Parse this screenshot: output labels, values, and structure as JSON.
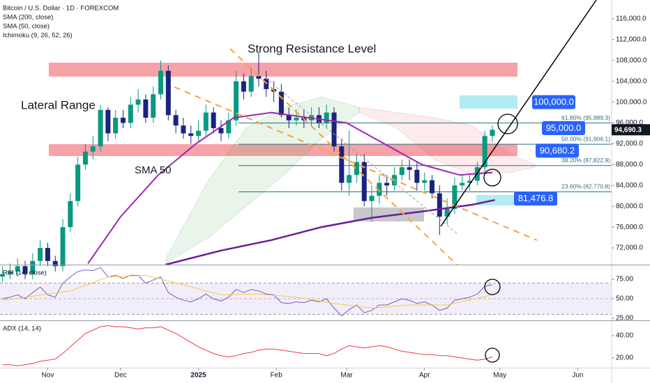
{
  "chart_data": [
    {
      "type": "candlestick",
      "title": "Bitcoin / U.S. Dollar · 1D · FOREXCOM",
      "indicators": [
        "SMA (200, close)",
        "SMA (50, close)",
        "Ichimoku (9, 26, 52, 26)"
      ],
      "x": [
        -17,
        -14,
        -11,
        -8,
        -5,
        -2,
        1,
        4,
        7,
        10,
        13,
        16,
        19,
        22,
        25,
        28,
        31,
        34,
        37,
        40,
        43,
        46,
        49,
        52,
        55,
        58,
        61,
        64,
        67,
        70,
        73,
        76,
        79,
        82,
        85,
        88,
        91,
        94,
        97,
        100,
        103,
        106,
        109,
        112,
        115,
        118,
        121,
        124,
        127,
        130,
        133,
        136,
        139,
        142,
        145,
        148,
        151,
        154,
        157,
        160,
        163,
        166,
        169,
        172,
        175,
        178
      ],
      "open": [
        66500,
        67000,
        67500,
        68500,
        67000,
        69500,
        72000,
        69500,
        68500,
        76000,
        81000,
        88000,
        90500,
        91500,
        98500,
        94000,
        97000,
        96000,
        99500,
        100500,
        97000,
        101500,
        106000,
        97500,
        95500,
        94000,
        93500,
        94500,
        98000,
        95000,
        94000,
        96500,
        104000,
        102000,
        105000,
        104500,
        102500,
        102000,
        97500,
        96500,
        97000,
        96500,
        97500,
        96000,
        98000,
        91500,
        84500,
        86000,
        88500,
        81000,
        82000,
        84500,
        84000,
        86000,
        87500,
        87000,
        84500,
        85000,
        82500,
        78000,
        79500,
        84000,
        84500,
        84900,
        87500,
        93500
      ],
      "high": [
        68500,
        69000,
        70000,
        69500,
        71000,
        73500,
        73000,
        70500,
        77500,
        82500,
        89500,
        92000,
        93500,
        99500,
        99000,
        98500,
        98500,
        101000,
        102500,
        101500,
        103000,
        108000,
        107000,
        98500,
        97000,
        95500,
        96500,
        99500,
        99000,
        96500,
        98000,
        106000,
        105500,
        106500,
        109500,
        106000,
        104000,
        103500,
        99000,
        98500,
        98500,
        99000,
        99000,
        99500,
        99000,
        93000,
        94500,
        90000,
        90000,
        84000,
        86000,
        86000,
        87500,
        89000,
        89000,
        88500,
        86500,
        86000,
        84000,
        81500,
        85500,
        86000,
        86000,
        88500,
        94500,
        95500
      ],
      "low": [
        65500,
        66000,
        66500,
        66000,
        66000,
        68500,
        68500,
        67500,
        67500,
        75000,
        80000,
        87000,
        89000,
        90500,
        92500,
        93000,
        95000,
        95000,
        98000,
        96000,
        96000,
        100500,
        96500,
        94000,
        93000,
        92000,
        92500,
        93500,
        94000,
        92500,
        93000,
        95500,
        100500,
        101000,
        103000,
        101000,
        100000,
        97000,
        95000,
        95500,
        95000,
        95500,
        95000,
        95000,
        90500,
        83000,
        82000,
        84500,
        80000,
        77000,
        80500,
        82000,
        83000,
        85000,
        85000,
        83000,
        83000,
        81500,
        74500,
        76500,
        78500,
        83000,
        83000,
        84000,
        86500,
        92500
      ],
      "close": [
        67000,
        67500,
        68500,
        67000,
        69500,
        72000,
        69500,
        68500,
        76000,
        81000,
        88000,
        90500,
        91500,
        98500,
        94000,
        97000,
        96000,
        99500,
        100500,
        97000,
        101500,
        106000,
        97500,
        95500,
        94000,
        93500,
        94500,
        98000,
        95000,
        94000,
        96500,
        104000,
        102000,
        105000,
        104500,
        102500,
        102000,
        97500,
        96500,
        97000,
        96500,
        97500,
        96000,
        98000,
        91500,
        84500,
        86000,
        88500,
        81000,
        82000,
        84500,
        84000,
        86000,
        87500,
        87000,
        84500,
        85000,
        82500,
        78000,
        79500,
        84000,
        84500,
        84900,
        87500,
        93500,
        94690.3
      ],
      "up_color": "#089981",
      "down_color": "#1a237e",
      "lines": [
        {
          "color": "#9c27b0",
          "x": [
            17,
            30,
            45,
            60,
            75,
            90,
            105,
            120,
            135,
            150,
            165,
            178
          ],
          "values": [
            69000,
            78000,
            86000,
            92000,
            97000,
            98000,
            97000,
            96000,
            92000,
            88000,
            86000,
            86500
          ]
        },
        {
          "color": "#6a1b9a",
          "x": [
            48,
            70,
            90,
            110,
            130,
            150,
            170,
            179
          ],
          "values": [
            68800,
            71500,
            73500,
            76000,
            77800,
            79000,
            80300,
            81200
          ]
        }
      ],
      "clouds": [
        {
          "color": "rgba(76,175,80,0.13)",
          "x": [
            48,
            65,
            80,
            95,
            110,
            125
          ],
          "upper": [
            70000,
            85000,
            95000,
            99000,
            101000,
            99000
          ],
          "lower": [
            69000,
            74000,
            80000,
            86000,
            93000,
            98000
          ]
        },
        {
          "color": "rgba(242,54,69,0.10)",
          "x": [
            125,
            140,
            155,
            170,
            185,
            195
          ],
          "upper": [
            99000,
            98000,
            97000,
            95500,
            90000,
            88000
          ],
          "lower": [
            98000,
            95000,
            89000,
            86000,
            86500,
            87500
          ]
        }
      ],
      "fib_levels": [
        {
          "value": 95989.3,
          "label": "61.80% (95,989.3)"
        },
        {
          "value": 91906.1,
          "label": "50.00% (91,906.1)"
        },
        {
          "value": 87822.9,
          "label": "38.20% (87,822.9)"
        },
        {
          "value": 82770.8,
          "label": "23.60% (82,770.8)"
        }
      ],
      "price_labels": [
        {
          "value": 100000,
          "label": "100,000.0"
        },
        {
          "value": 95000,
          "label": "95,000.0"
        },
        {
          "value": 90680.2,
          "label": "90,680.2"
        },
        {
          "value": 81476.8,
          "label": "81,476.8"
        }
      ],
      "last_price": {
        "value": 94690.3,
        "label": "94,690.3"
      },
      "annotations": [
        "Strong Resistance Level",
        "Lateral Range",
        "SMA 50"
      ],
      "xlim": [
        -18,
        225.5
      ],
      "ylim": [
        68800,
        119600
      ],
      "yticks": [
        {
          "value": 116000,
          "label": "116,000.0"
        },
        {
          "value": 112000,
          "label": "112,000.0"
        },
        {
          "value": 108000,
          "label": "108,000.0"
        },
        {
          "value": 104000,
          "label": "104,000.0"
        },
        {
          "value": 100000,
          "label": "100,000.0"
        },
        {
          "value": 96000,
          "label": "96,000.0"
        },
        {
          "value": 92000,
          "label": "92,000.0"
        },
        {
          "value": 88000,
          "label": "88,000.0"
        },
        {
          "value": 84000,
          "label": "84,000.0"
        },
        {
          "value": 80000,
          "label": "80,000.0"
        },
        {
          "value": 76000,
          "label": "76,000.0"
        },
        {
          "value": 72000,
          "label": "72,000.0"
        }
      ],
      "xticks": [
        {
          "value": 1,
          "label": "Nov"
        },
        {
          "value": 30,
          "label": "Dec"
        },
        {
          "value": 61,
          "label": "2025"
        },
        {
          "value": 92,
          "label": "Feb"
        },
        {
          "value": 120,
          "label": "Mar"
        },
        {
          "value": 151,
          "label": "Apr"
        },
        {
          "value": 181,
          "label": "May"
        },
        {
          "value": 212,
          "label": "Jun"
        }
      ]
    },
    {
      "type": "line",
      "title": "RSI (14, close)",
      "x": [
        -17,
        -14,
        -11,
        -8,
        -5,
        -2,
        1,
        4,
        7,
        10,
        13,
        16,
        19,
        22,
        25,
        28,
        31,
        34,
        37,
        40,
        43,
        46,
        49,
        52,
        55,
        58,
        61,
        64,
        67,
        70,
        73,
        76,
        79,
        82,
        85,
        88,
        91,
        94,
        97,
        100,
        103,
        106,
        109,
        112,
        115,
        118,
        121,
        124,
        127,
        130,
        133,
        136,
        139,
        142,
        145,
        148,
        151,
        154,
        157,
        160,
        163,
        166,
        169,
        172,
        175,
        178
      ],
      "series": [
        {
          "color": "#7e57c2",
          "x": [
            -17,
            -14,
            -11,
            -8,
            -5,
            -2,
            1,
            4,
            7,
            10,
            13,
            16,
            19,
            22,
            25,
            28,
            31,
            34,
            37,
            40,
            43,
            46,
            49,
            52,
            55,
            58,
            61,
            64,
            67,
            70,
            73,
            76,
            79,
            82,
            85,
            88,
            91,
            94,
            97,
            100,
            103,
            106,
            109,
            112,
            115,
            118,
            121,
            124,
            127,
            130,
            133,
            136,
            139,
            142,
            145,
            148,
            151,
            154,
            157,
            160,
            163,
            166,
            169,
            172,
            175,
            178
          ],
          "values": [
            50,
            52,
            55,
            50,
            58,
            65,
            55,
            52,
            70,
            78,
            85,
            87,
            86,
            90,
            78,
            80,
            76,
            80,
            80,
            70,
            74,
            78,
            58,
            52,
            48,
            46,
            50,
            56,
            50,
            47,
            52,
            62,
            58,
            62,
            60,
            56,
            55,
            45,
            44,
            46,
            45,
            48,
            46,
            50,
            38,
            28,
            36,
            42,
            32,
            35,
            42,
            42,
            46,
            50,
            48,
            44,
            46,
            42,
            35,
            38,
            48,
            50,
            52,
            56,
            66,
            68
          ]
        },
        {
          "color": "#f7c948",
          "x": [
            -17,
            10,
            25,
            40,
            55,
            70,
            85,
            100,
            115,
            130,
            145,
            160,
            178
          ],
          "values": [
            48,
            60,
            78,
            80,
            68,
            55,
            56,
            52,
            44,
            38,
            42,
            42,
            55
          ]
        }
      ],
      "band": [
        30,
        70
      ],
      "xlim": [
        -18,
        225.5
      ],
      "ylim": [
        22.3,
        92.9
      ],
      "yticks": [
        {
          "value": 75,
          "label": "75.00"
        },
        {
          "value": 50,
          "label": "50.00"
        },
        {
          "value": 25,
          "label": "25.00"
        }
      ]
    },
    {
      "type": "line",
      "title": "ADX (14, 14)",
      "series": [
        {
          "color": "#f23645",
          "x": [
            -17,
            -14,
            -11,
            -8,
            -5,
            -2,
            1,
            4,
            7,
            10,
            13,
            16,
            19,
            22,
            25,
            28,
            31,
            34,
            37,
            40,
            43,
            46,
            49,
            52,
            55,
            58,
            61,
            64,
            67,
            70,
            73,
            76,
            79,
            82,
            85,
            88,
            91,
            94,
            97,
            100,
            103,
            106,
            109,
            112,
            115,
            118,
            121,
            124,
            127,
            130,
            133,
            136,
            139,
            142,
            145,
            148,
            151,
            154,
            157,
            160,
            163,
            166,
            169,
            172,
            175,
            178
          ],
          "values": [
            14,
            14,
            13,
            14,
            15,
            17,
            18,
            19,
            24,
            30,
            36,
            42,
            45,
            48,
            49,
            48,
            48,
            47,
            46,
            47,
            47,
            48,
            45,
            42,
            38,
            34,
            30,
            27,
            24,
            22,
            21,
            22,
            24,
            25,
            27,
            28,
            28,
            27,
            26,
            25,
            24,
            24,
            24,
            22,
            24,
            28,
            31,
            30,
            29,
            30,
            31,
            30,
            28,
            26,
            25,
            24,
            23,
            23,
            22,
            22,
            21,
            20,
            19,
            18,
            19,
            21
          ]
        }
      ],
      "xlim": [
        -18,
        225.5
      ],
      "ylim": [
        11.3,
        53.1
      ],
      "yticks": [
        {
          "value": 40,
          "label": "40.00"
        },
        {
          "value": 20,
          "label": "20.00"
        }
      ]
    }
  ]
}
